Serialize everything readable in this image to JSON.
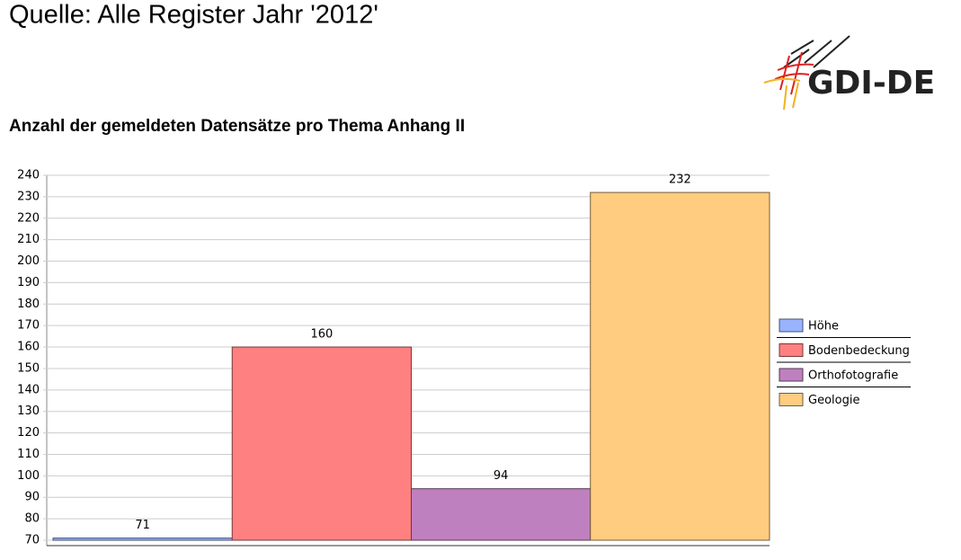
{
  "header": {
    "title": "Quelle: Alle Register Jahr '2012'",
    "logo": "GDI-DE"
  },
  "chart_data": {
    "type": "bar",
    "title": "Anzahl der gemeldeten Datensätze pro Thema Anhang II",
    "series": [
      {
        "name": "Höhe",
        "color": "#99b3ff",
        "values": [
          71
        ]
      },
      {
        "name": "Bodenbedeckung",
        "color": "#ff8080",
        "values": [
          160
        ]
      },
      {
        "name": "Orthofotografie",
        "color": "#bf80bf",
        "values": [
          94
        ]
      },
      {
        "name": "Geologie",
        "color": "#ffcc80",
        "values": [
          232
        ]
      }
    ],
    "ylim": [
      70,
      240
    ],
    "yticks": [
      70,
      80,
      90,
      100,
      110,
      120,
      130,
      140,
      150,
      160,
      170,
      180,
      190,
      200,
      210,
      220,
      230,
      240
    ],
    "grid": true,
    "legend": "right"
  }
}
